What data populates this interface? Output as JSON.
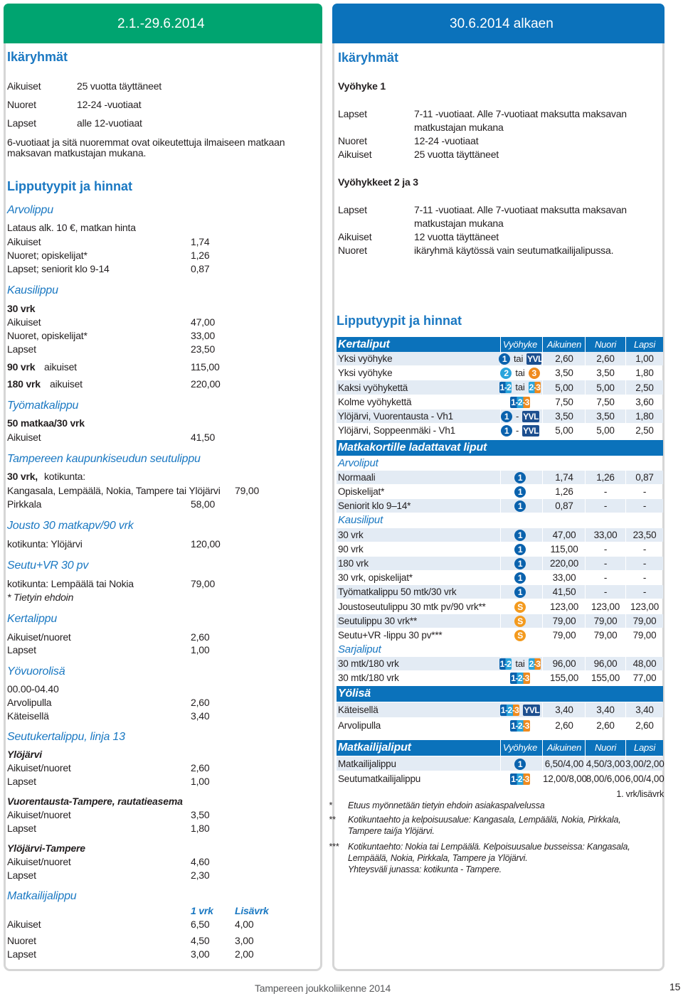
{
  "left": {
    "date": "2.1.-29.6.2014",
    "rows": [
      [
        "Ikäryhmät"
      ],
      [
        "Aikuiset",
        "25 vuotta täyttäneet"
      ],
      [
        "Nuoret",
        "12-24 -vuotiaat"
      ],
      [
        "Lapset",
        "alle 12-vuotiaat"
      ],
      [
        "6-vuotiaat ja sitä nuoremmat ovat oikeutettuja ilmaiseen matkaan maksavan matkustajan mukana."
      ],
      [
        "Lipputyypit ja hinnat"
      ],
      [
        "Arvolippu"
      ],
      [
        "Lataus alk. 10 €, matkan hinta"
      ],
      [
        "Aikuiset",
        "1,74"
      ],
      [
        "Nuoret; opiskelijat*",
        "1,26"
      ],
      [
        "Lapset; seniorit klo 9-14",
        "0,87"
      ],
      [
        "Kausilippu"
      ],
      [
        "30 vrk"
      ],
      [
        "Aikuiset",
        "47,00"
      ],
      [
        "Nuoret, opiskelijat*",
        "33,00"
      ],
      [
        "Lapset",
        "23,50"
      ],
      [
        "90 vrk",
        "aikuiset",
        "115,00"
      ],
      [
        "180 vrk",
        "aikuiset",
        "220,00"
      ],
      [
        "Työmatkalippu"
      ],
      [
        "50 matkaa/30 vrk"
      ],
      [
        "Aikuiset",
        "41,50"
      ],
      [
        "Tampereen kaupunkiseudun seutulippu"
      ],
      [
        "30 vrk,",
        "kotikunta:"
      ],
      [
        "Kangasala, Lempäälä, Nokia, Tampere tai Ylöjärvi",
        "79,00"
      ],
      [
        "Pirkkala",
        "58,00"
      ],
      [
        "Jousto 30 matkapv/90 vrk"
      ],
      [
        "kotikunta: Ylöjärvi",
        "120,00"
      ],
      [
        "Seutu+VR 30 pv"
      ],
      [
        "kotikunta: Lempäälä tai Nokia",
        "79,00"
      ],
      [
        "* Tietyin ehdoin"
      ],
      [
        "Kertalippu"
      ],
      [
        "Aikuiset/nuoret",
        "2,60"
      ],
      [
        "Lapset",
        "1,00"
      ],
      [
        "Yövuorolisä"
      ],
      [
        "00.00-04.40"
      ],
      [
        "Arvolipulla",
        "2,60"
      ],
      [
        "Käteisellä",
        "3,40"
      ],
      [
        "Seutukertalippu, linja 13"
      ],
      [
        "Ylöjärvi"
      ],
      [
        "Aikuiset/nuoret",
        "2,60"
      ],
      [
        "Lapset",
        "1,00"
      ],
      [
        "Vuorentausta-Tampere, rautatieasema"
      ],
      [
        "Aikuiset/nuoret",
        "3,50"
      ],
      [
        "Lapset",
        "1,80"
      ],
      [
        "Ylöjärvi-Tampere"
      ],
      [
        "Aikuiset/nuoret",
        "4,60"
      ],
      [
        "Lapset",
        "2,30"
      ],
      [
        "Matkailijalippu"
      ],
      [
        "1 vrk",
        "Lisävrk"
      ],
      [
        "Aikuiset",
        "6,50",
        "4,00"
      ],
      [
        "Nuoret",
        "4,50",
        "3,00"
      ],
      [
        "Lapset",
        "3,00",
        "2,00"
      ]
    ]
  },
  "right": {
    "date": "30.6.2014 alkaen",
    "rows": [
      [
        "Ikäryhmät"
      ],
      [
        "Vyöhyke 1"
      ],
      [
        "Lapset",
        "7-11 -vuotiaat. Alle 7-vuotiaat maksutta maksavan matkustajan mukana"
      ],
      [
        "Nuoret",
        "12-24 -vuotiaat"
      ],
      [
        "Aikuiset",
        "25 vuotta täyttäneet"
      ],
      [
        "Vyöhykkeet 2 ja 3"
      ],
      [
        "Lapset",
        "7-11 -vuotiaat. Alle 7-vuotiaat maksutta maksavan matkustajan mukana"
      ],
      [
        "Aikuiset",
        "12 vuotta täyttäneet"
      ],
      [
        "Nuoret",
        "ikäryhmä käytössä vain seutumatkailijalipussa."
      ],
      [
        "Lipputyypit ja hinnat"
      ]
    ],
    "tickets": [
      {
        "title": "Kertaliput",
        "columns": [
          "Vyöhyke",
          "Aikuinen",
          "Nuori",
          "Lapsi"
        ]
      },
      {
        "name": "Yksi vyöhyke",
        "zone": [
          {
            "label": "1",
            "colors": [
              "#0a62ad"
            ]
          },
          "tai",
          {
            "label": "YVL",
            "colors": [
              "#1d4f8f"
            ]
          }
        ],
        "values": [
          "2,60",
          "2,60",
          "1,00"
        ]
      },
      {
        "name": "Yksi vyöhyke",
        "zone": [
          {
            "label": "2",
            "colors": [
              "#2aa4dc"
            ]
          },
          "tai",
          {
            "label": "3",
            "colors": [
              "#ef8a1e"
            ]
          }
        ],
        "values": [
          "3,50",
          "3,50",
          "1,80"
        ]
      },
      {
        "name": "Kaksi vyöhykettä",
        "zone": [
          {
            "label": "1-2",
            "colors": [
              "#0a62ad",
              "#2aa4dc"
            ]
          },
          "tai",
          {
            "label": "2-3",
            "colors": [
              "#2aa4dc",
              "#ef8a1e"
            ]
          }
        ],
        "values": [
          "5,00",
          "5,00",
          "2,50"
        ]
      },
      {
        "name": "Kolme vyöhykettä",
        "zone": [
          {
            "label": "1-2-3",
            "colors": [
              "#0a62ad",
              "#2aa4dc",
              "#ef8a1e"
            ]
          }
        ],
        "values": [
          "7,50",
          "7,50",
          "3,60"
        ]
      },
      {
        "name": "Ylöjärvi, Vuorentausta - Vh1",
        "zone": [
          {
            "label": "1",
            "colors": [
              "#0a62ad"
            ]
          },
          "-",
          {
            "label": "YVL",
            "colors": [
              "#1d4f8f"
            ]
          }
        ],
        "values": [
          "3,50",
          "3,50",
          "1,80"
        ]
      },
      {
        "name": "Ylöjärvi, Soppeenmäki - Vh1",
        "zone": [
          {
            "label": "1",
            "colors": [
              "#0a62ad"
            ]
          },
          "-",
          {
            "label": "YVL",
            "colors": [
              "#1d4f8f"
            ]
          }
        ],
        "values": [
          "5,00",
          "5,00",
          "2,50"
        ]
      },
      {
        "title": "Matkakortille ladattavat liput"
      },
      {
        "subtitle": "Arvoliput"
      },
      {
        "name": "Normaali",
        "zone": [
          {
            "label": "1",
            "colors": [
              "#0a62ad"
            ]
          }
        ],
        "values": [
          "1,74",
          "1,26",
          "0,87"
        ]
      },
      {
        "name": "Opiskelijat*",
        "zone": [
          {
            "label": "1",
            "colors": [
              "#0a62ad"
            ]
          }
        ],
        "values": [
          "1,26",
          "-",
          "-"
        ]
      },
      {
        "name": "Seniorit klo 9–14*",
        "zone": [
          {
            "label": "1",
            "colors": [
              "#0a62ad"
            ]
          }
        ],
        "values": [
          "0,87",
          "-",
          "-"
        ]
      },
      {
        "subtitle": "Kausiliput"
      },
      {
        "name": "30 vrk",
        "zone": [
          {
            "label": "1",
            "colors": [
              "#0a62ad"
            ]
          }
        ],
        "values": [
          "47,00",
          "33,00",
          "23,50"
        ]
      },
      {
        "name": "90 vrk",
        "zone": [
          {
            "label": "1",
            "colors": [
              "#0a62ad"
            ]
          }
        ],
        "values": [
          "115,00",
          "-",
          "-"
        ]
      },
      {
        "name": "180 vrk",
        "zone": [
          {
            "label": "1",
            "colors": [
              "#0a62ad"
            ]
          }
        ],
        "values": [
          "220,00",
          "-",
          "-"
        ]
      },
      {
        "name": "30 vrk, opiskelijat*",
        "zone": [
          {
            "label": "1",
            "colors": [
              "#0a62ad"
            ]
          }
        ],
        "values": [
          "33,00",
          "-",
          "-"
        ]
      },
      {
        "name": "Työmatkalippu 50 mtk/30 vrk",
        "zone": [
          {
            "label": "1",
            "colors": [
              "#0a62ad"
            ]
          }
        ],
        "values": [
          "41,50",
          "-",
          "-"
        ]
      },
      {
        "name": "Joustoseutulippu 30 mtk pv/90 vrk**",
        "zone": [
          {
            "label": "S",
            "colors": [
              "#f39a1e"
            ]
          }
        ],
        "values": [
          "123,00",
          "123,00",
          "123,00"
        ]
      },
      {
        "name": "Seutulippu 30 vrk**",
        "zone": [
          {
            "label": "S",
            "colors": [
              "#f39a1e"
            ]
          }
        ],
        "values": [
          "79,00",
          "79,00",
          "79,00"
        ]
      },
      {
        "name": "Seutu+VR -lippu 30 pv***",
        "zone": [
          {
            "label": "S",
            "colors": [
              "#f39a1e"
            ]
          }
        ],
        "values": [
          "79,00",
          "79,00",
          "79,00"
        ]
      },
      {
        "subtitle": "Sarjaliput"
      },
      {
        "name": "30 mtk/180 vrk",
        "zone": [
          {
            "label": "1-2",
            "colors": [
              "#0a62ad",
              "#2aa4dc"
            ]
          },
          "tai",
          {
            "label": "2-3",
            "colors": [
              "#2aa4dc",
              "#ef8a1e"
            ]
          }
        ],
        "values": [
          "96,00",
          "96,00",
          "48,00"
        ]
      },
      {
        "name": "30 mtk/180 vrk",
        "zone": [
          {
            "label": "1-2-3",
            "colors": [
              "#0a62ad",
              "#2aa4dc",
              "#ef8a1e"
            ]
          }
        ],
        "values": [
          "155,00",
          "155,00",
          "77,00"
        ]
      },
      {
        "title": "Yölisä"
      },
      {
        "name": "Käteisellä",
        "zone": [
          {
            "label": "1-2-3",
            "colors": [
              "#0a62ad",
              "#2aa4dc",
              "#ef8a1e"
            ]
          },
          {
            "label": "YVL",
            "colors": [
              "#1d4f8f"
            ]
          }
        ],
        "values": [
          "3,40",
          "3,40",
          "3,40"
        ]
      },
      {
        "name": "Arvolipulla",
        "zone": [
          {
            "label": "1-2-3",
            "colors": [
              "#0a62ad",
              "#2aa4dc",
              "#ef8a1e"
            ]
          }
        ],
        "values": [
          "2,60",
          "2,60",
          "2,60"
        ]
      },
      {
        "title": "Matkailijaliput",
        "columns": [
          "Vyöhyke",
          "Aikuinen",
          "Nuori",
          "Lapsi"
        ]
      },
      {
        "name": "Matkailijalippu",
        "zone": [
          {
            "label": "1",
            "colors": [
              "#0a62ad"
            ]
          }
        ],
        "values": [
          "6,50/4,00",
          "4,50/3,00",
          "3,00/2,00"
        ]
      },
      {
        "name": "Seutumatkailijalippu",
        "zone": [
          {
            "label": "1-2-3",
            "colors": [
              "#0a62ad",
              "#2aa4dc",
              "#ef8a1e"
            ]
          }
        ],
        "values": [
          "12,00/8,00",
          "8,00/6,00",
          "6,00/4,00"
        ]
      }
    ],
    "note": "1. vrk/lisävrk",
    "footnotes": [
      {
        "mark": "*",
        "lines": [
          "Etuus myönnetään tietyin ehdoin asiakaspalvelussa"
        ]
      },
      {
        "mark": "**",
        "lines": [
          "Kotikuntaehto ja kelpoisuusalue: Kangasala, Lempäälä, Nokia, Pirkkala, Tampere tai/ja Ylöjärvi."
        ]
      },
      {
        "mark": "***",
        "lines": [
          "Kotikuntaehto: Nokia tai Lempäälä. Kelpoisuusalue busseissa: Kangasala, Lempäälä, Nokia, Pirkkala, Tampere ja Ylöjärvi.",
          "Yhteysväli junassa: kotikunta - Tampere."
        ]
      }
    ]
  },
  "footer": {
    "text": "Tampereen joukkoliikenne 2014",
    "page": "15"
  }
}
